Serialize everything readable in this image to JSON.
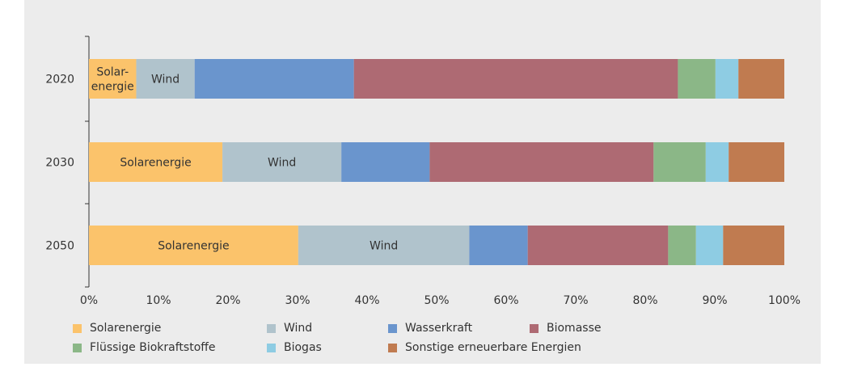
{
  "chart_data": {
    "type": "bar",
    "orientation": "horizontal",
    "stacked": true,
    "normalized_percent": true,
    "categories": [
      "2020",
      "2030",
      "2050"
    ],
    "series": [
      {
        "name": "Solarenergie",
        "color": "#fbc36b",
        "values": [
          6.8,
          19.2,
          30.1
        ],
        "labels": [
          "Solar-\nenergie",
          "Solarenergie",
          "Solarenergie"
        ]
      },
      {
        "name": "Wind",
        "color": "#b0c3cc",
        "values": [
          8.4,
          17.1,
          24.6
        ],
        "labels": [
          "Wind",
          "Wind",
          "Wind"
        ]
      },
      {
        "name": "Wasserkraft",
        "color": "#6a95cd",
        "values": [
          22.9,
          12.7,
          8.4
        ],
        "labels": [
          "",
          "",
          ""
        ]
      },
      {
        "name": "Biomasse",
        "color": "#ae6a73",
        "values": [
          46.6,
          32.2,
          20.2
        ],
        "labels": [
          "",
          "",
          ""
        ]
      },
      {
        "name": "Flüssige Biokraftstoffe",
        "color": "#8bb787",
        "values": [
          5.4,
          7.5,
          4.0
        ],
        "labels": [
          "",
          "",
          ""
        ]
      },
      {
        "name": "Biogas",
        "color": "#8ecce3",
        "values": [
          3.3,
          3.3,
          3.9
        ],
        "labels": [
          "",
          "",
          ""
        ]
      },
      {
        "name": "Sonstige erneuerbare Energien",
        "color": "#c07b50",
        "values": [
          6.6,
          8.0,
          8.8
        ],
        "labels": [
          "",
          "",
          ""
        ]
      }
    ],
    "xlim": [
      0,
      100
    ],
    "xticks": [
      "0%",
      "10%",
      "20%",
      "30%",
      "40%",
      "50%",
      "60%",
      "70%",
      "80%",
      "90%",
      "100%"
    ],
    "legend_position": "bottom",
    "grid": false
  }
}
